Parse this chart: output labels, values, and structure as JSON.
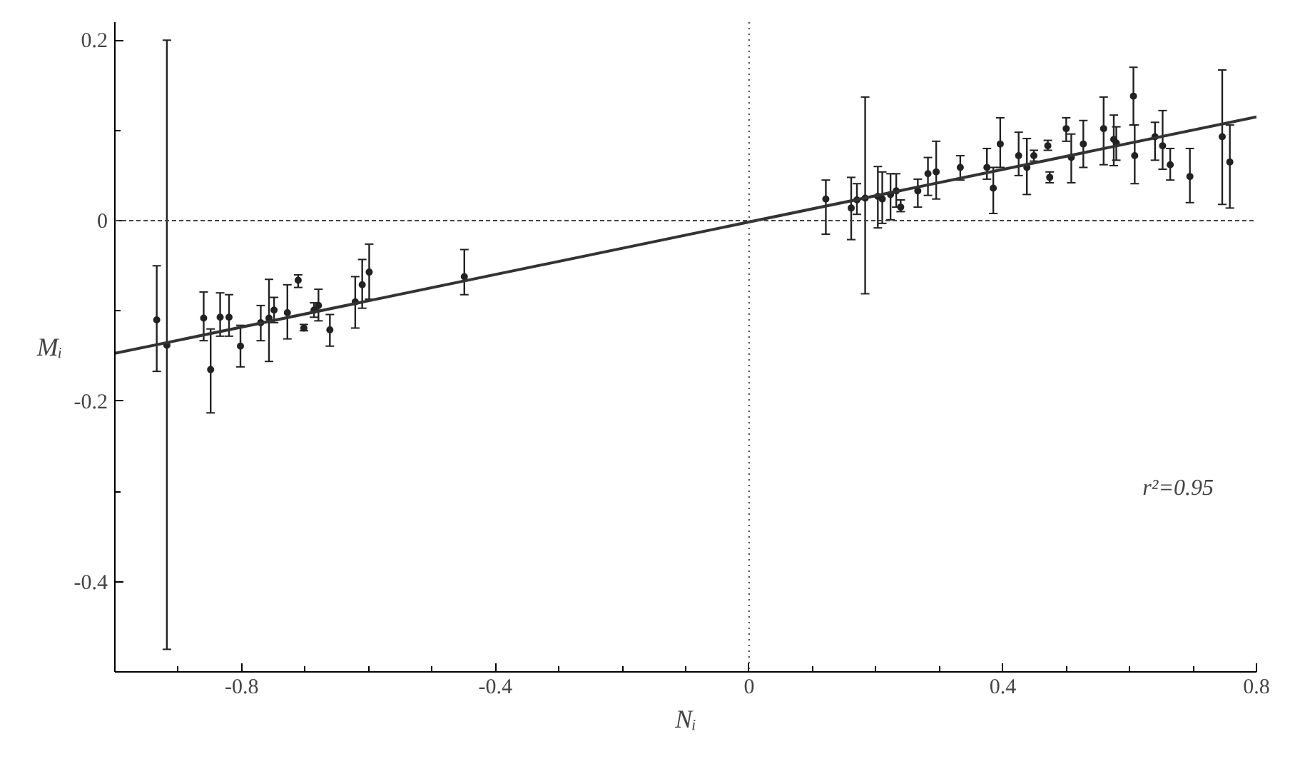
{
  "chart_data": {
    "type": "scatter",
    "xlabel": "Nᵢ",
    "ylabel": "Mᵢ",
    "xlim": [
      -1,
      0.8
    ],
    "ylim": [
      -0.5,
      0.22
    ],
    "xticks": [
      {
        "value": -0.9,
        "label": null
      },
      -0.8,
      {
        "value": -0.7,
        "label": null
      },
      {
        "value": -0.6,
        "label": null
      },
      {
        "value": -0.5,
        "label": null
      },
      -0.4,
      {
        "value": -0.3,
        "label": null
      },
      {
        "value": -0.2,
        "label": null
      },
      {
        "value": -0.1,
        "label": null
      },
      0,
      {
        "value": 0.1,
        "label": null
      },
      {
        "value": 0.2,
        "label": null
      },
      {
        "value": 0.3,
        "label": null
      },
      0.4,
      {
        "value": 0.5,
        "label": null
      },
      {
        "value": 0.6,
        "label": null
      },
      {
        "value": 0.7,
        "label": null
      },
      0.8
    ],
    "yticks": [
      -0.4,
      {
        "value": -0.3,
        "label": null
      },
      -0.2,
      {
        "value": -0.1,
        "label": null
      },
      0,
      {
        "value": 0.1,
        "label": null
      },
      0.2
    ],
    "grid": false,
    "ref_lines": [
      {
        "axis": "y",
        "value": 0,
        "line_style": "dashed"
      },
      {
        "axis": "x",
        "value": 0,
        "line_style": "dotted"
      }
    ],
    "annotations": [
      "r²=0.95"
    ],
    "series": [
      {
        "color": "#222222",
        "marker": "circle",
        "x": [
          -0.934,
          -0.918,
          -0.86,
          -0.849,
          -0.834,
          -0.82,
          -0.802,
          -0.77,
          -0.757,
          -0.749,
          -0.728,
          -0.711,
          -0.702,
          -0.686,
          -0.679,
          -0.661,
          -0.621,
          -0.61,
          -0.599,
          -0.449,
          0.121,
          0.161,
          0.183,
          0.17,
          0.203,
          0.21,
          0.223,
          0.232,
          0.239,
          0.266,
          0.282,
          0.295,
          0.333,
          0.375,
          0.385,
          0.396,
          0.425,
          0.438,
          0.449,
          0.471,
          0.474,
          0.5,
          0.508,
          0.527,
          0.559,
          0.575,
          0.579,
          0.606,
          0.608,
          0.64,
          0.652,
          0.664,
          0.695,
          0.746,
          0.758
        ],
        "values": [
          -0.11,
          -0.138,
          -0.108,
          -0.165,
          -0.107,
          -0.107,
          -0.139,
          -0.113,
          -0.108,
          -0.099,
          -0.102,
          -0.066,
          -0.119,
          -0.099,
          -0.094,
          -0.121,
          -0.09,
          -0.071,
          -0.057,
          -0.062,
          0.024,
          0.014,
          0.025,
          0.023,
          0.027,
          0.024,
          0.029,
          0.033,
          0.015,
          0.033,
          0.052,
          0.054,
          0.059,
          0.059,
          0.036,
          0.085,
          0.072,
          0.059,
          0.072,
          0.083,
          0.048,
          0.102,
          0.07,
          0.085,
          0.102,
          0.09,
          0.086,
          0.138,
          0.072,
          0.093,
          0.083,
          0.062,
          0.049,
          0.093,
          0.065
        ],
        "errors": [
          [
            -0.167,
            -0.05
          ],
          [
            -0.475,
            0.2
          ],
          [
            -0.133,
            -0.079
          ],
          [
            -0.213,
            -0.12
          ],
          [
            -0.128,
            -0.08
          ],
          [
            -0.128,
            -0.082
          ],
          [
            -0.162,
            -0.116
          ],
          [
            -0.133,
            -0.094
          ],
          [
            -0.156,
            -0.065
          ],
          [
            -0.113,
            -0.085
          ],
          [
            -0.131,
            -0.071
          ],
          [
            -0.074,
            -0.06
          ],
          [
            -0.122,
            -0.115
          ],
          [
            -0.107,
            -0.091
          ],
          [
            -0.111,
            -0.076
          ],
          [
            -0.139,
            -0.104
          ],
          [
            -0.119,
            -0.062
          ],
          [
            -0.097,
            -0.043
          ],
          [
            -0.087,
            -0.026
          ],
          [
            -0.082,
            -0.032
          ],
          [
            -0.015,
            0.045
          ],
          [
            -0.021,
            0.048
          ],
          [
            -0.081,
            0.137
          ],
          [
            0.007,
            0.041
          ],
          [
            -0.008,
            0.06
          ],
          [
            -0.003,
            0.054
          ],
          [
            0.001,
            0.052
          ],
          [
            0.015,
            0.052
          ],
          [
            0.01,
            0.023
          ],
          [
            0.015,
            0.046
          ],
          [
            0.028,
            0.07
          ],
          [
            0.024,
            0.088
          ],
          [
            0.045,
            0.072
          ],
          [
            0.046,
            0.08
          ],
          [
            0.008,
            0.059
          ],
          [
            0.059,
            0.114
          ],
          [
            0.05,
            0.098
          ],
          [
            0.029,
            0.091
          ],
          [
            0.066,
            0.078
          ],
          [
            0.078,
            0.089
          ],
          [
            0.042,
            0.054
          ],
          [
            0.088,
            0.114
          ],
          [
            0.042,
            0.096
          ],
          [
            0.059,
            0.111
          ],
          [
            0.062,
            0.137
          ],
          [
            0.061,
            0.117
          ],
          [
            0.067,
            0.104
          ],
          [
            0.106,
            0.17
          ],
          [
            0.041,
            0.106
          ],
          [
            0.067,
            0.109
          ],
          [
            0.057,
            0.122
          ],
          [
            0.045,
            0.08
          ],
          [
            0.02,
            0.08
          ],
          [
            0.018,
            0.167
          ],
          [
            0.014,
            0.106
          ]
        ]
      },
      {
        "type": "line",
        "color": "#333333",
        "x": [
          -1,
          0.8
        ],
        "values": [
          -0.147,
          0.115
        ]
      }
    ]
  }
}
